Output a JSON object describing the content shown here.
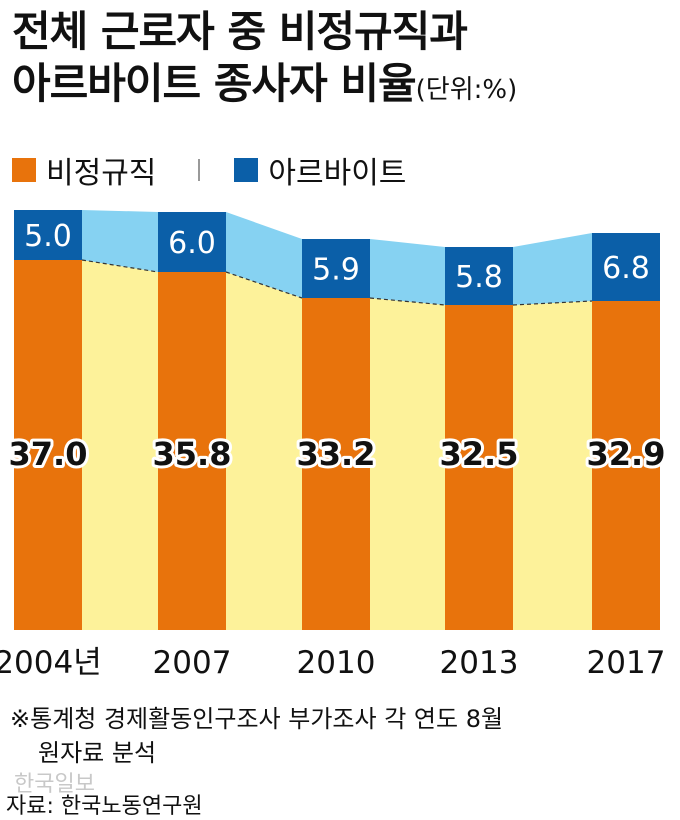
{
  "title": {
    "line1": "전체 근로자 중 비정규직과",
    "line2": "아르바이트 종사자 비율",
    "unit": "(단위:%)"
  },
  "chart_data": {
    "type": "bar",
    "stacked": true,
    "categories": [
      "2004년",
      "2007",
      "2010",
      "2013",
      "2017"
    ],
    "series": [
      {
        "name": "비정규직",
        "values": [
          37.0,
          35.8,
          33.2,
          32.5,
          32.9
        ],
        "labels": [
          "37.0",
          "35.8",
          "33.2",
          "32.5",
          "32.9"
        ],
        "color": "#e8730c"
      },
      {
        "name": "아르바이트",
        "values": [
          5.0,
          6.0,
          5.9,
          5.8,
          6.8
        ],
        "labels": [
          "5.0",
          "6.0",
          "5.9",
          "5.8",
          "6.8"
        ],
        "color": "#0b5fa8"
      }
    ],
    "fill_colors": {
      "lower": "#fdf29a",
      "upper": "#86d2f2"
    },
    "ylim": [
      0,
      42
    ]
  },
  "legend": {
    "items": [
      {
        "label": "비정규직",
        "color": "#e8730c"
      },
      {
        "label": "아르바이트",
        "color": "#0b5fa8"
      }
    ]
  },
  "footnote": {
    "line1": "※통계청 경제활동인구조사 부가조사 각 연도 8월",
    "line2": "원자료 분석"
  },
  "watermark": "한국일보",
  "source": "자료: 한국노동연구원"
}
